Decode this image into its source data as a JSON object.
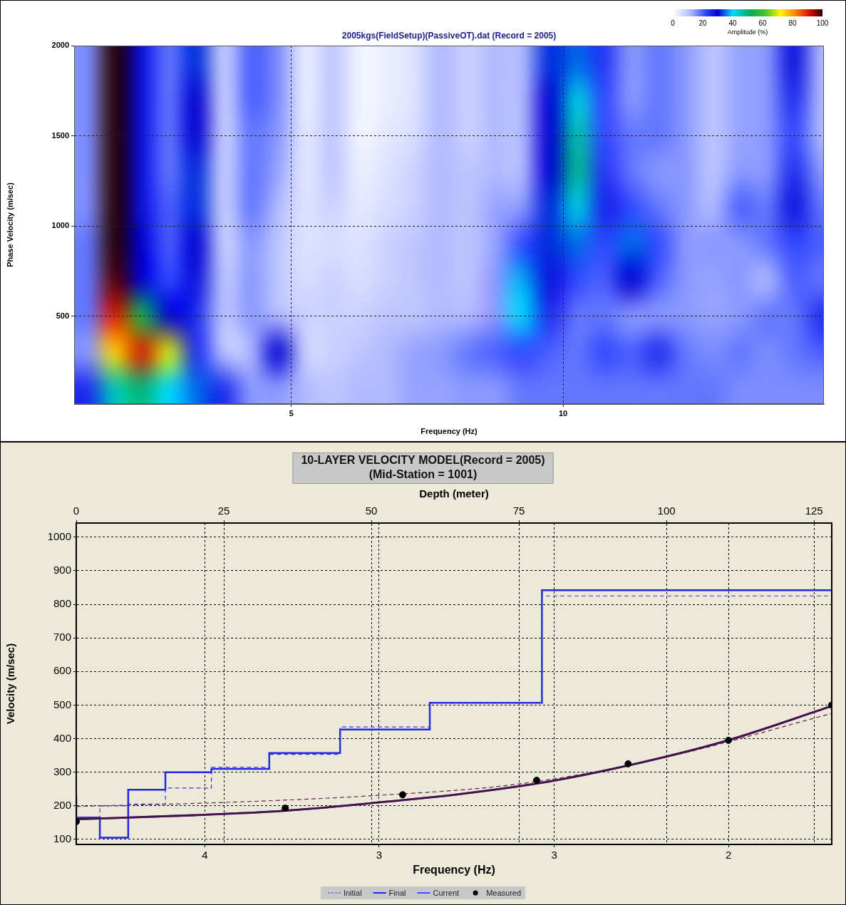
{
  "chart_data": [
    {
      "type": "heatmap",
      "title": "2005kgs(FieldSetup)(PassiveOT).dat (Record = 2005)",
      "x_label": "Frequency (Hz)",
      "y_label": "Phase Velocity (m/sec)",
      "xlim": [
        1,
        14.8
      ],
      "xticks": [
        5,
        10
      ],
      "ylim": [
        12,
        2000
      ],
      "yticks": [
        500,
        1000,
        1500,
        2000
      ],
      "grid": true,
      "x": [
        1.25,
        1.75,
        2.25,
        2.75,
        3.25,
        3.75,
        4.25,
        4.75,
        5.25,
        5.75,
        6.25,
        6.75,
        7.25,
        7.75,
        8.25,
        8.75,
        9.25,
        9.75,
        10.25,
        10.75,
        11.25,
        11.75,
        12.25,
        12.75,
        13.25,
        13.75,
        14.25,
        14.75
      ],
      "y": [
        100,
        300,
        500,
        700,
        900,
        1100,
        1300,
        1500,
        1700,
        1900
      ],
      "cells": [
        [
          25,
          45,
          50,
          40,
          35,
          25,
          15,
          15,
          12,
          10,
          12,
          12,
          14,
          14,
          15,
          15,
          18,
          18,
          18,
          18,
          18,
          18,
          18,
          18,
          16,
          16,
          16,
          16
        ],
        [
          15,
          75,
          90,
          70,
          25,
          10,
          12,
          30,
          8,
          8,
          10,
          12,
          14,
          15,
          18,
          20,
          22,
          20,
          18,
          22,
          20,
          25,
          18,
          16,
          18,
          16,
          18,
          20
        ],
        [
          18,
          90,
          55,
          30,
          25,
          10,
          15,
          12,
          8,
          8,
          8,
          10,
          10,
          12,
          12,
          15,
          40,
          25,
          18,
          18,
          15,
          15,
          15,
          14,
          15,
          18,
          18,
          25
        ],
        [
          18,
          98,
          30,
          22,
          28,
          10,
          15,
          10,
          6,
          8,
          6,
          8,
          10,
          12,
          10,
          15,
          38,
          28,
          22,
          20,
          30,
          20,
          15,
          14,
          15,
          12,
          20,
          18
        ],
        [
          18,
          100,
          30,
          20,
          30,
          8,
          15,
          10,
          5,
          6,
          5,
          8,
          10,
          12,
          10,
          14,
          22,
          32,
          35,
          22,
          35,
          22,
          15,
          15,
          15,
          18,
          22,
          20
        ],
        [
          16,
          100,
          28,
          20,
          32,
          8,
          18,
          12,
          5,
          8,
          4,
          6,
          8,
          12,
          10,
          14,
          15,
          32,
          42,
          26,
          22,
          18,
          15,
          12,
          20,
          18,
          28,
          18
        ],
        [
          16,
          100,
          28,
          18,
          32,
          8,
          18,
          14,
          4,
          10,
          3,
          5,
          8,
          12,
          10,
          12,
          12,
          30,
          48,
          24,
          18,
          15,
          15,
          10,
          15,
          15,
          25,
          15
        ],
        [
          16,
          100,
          28,
          18,
          30,
          8,
          18,
          15,
          4,
          10,
          2,
          4,
          6,
          12,
          8,
          12,
          12,
          30,
          46,
          22,
          18,
          18,
          15,
          10,
          14,
          15,
          22,
          12
        ],
        [
          16,
          100,
          28,
          18,
          30,
          8,
          20,
          16,
          3,
          10,
          2,
          3,
          5,
          12,
          8,
          12,
          12,
          30,
          42,
          22,
          15,
          18,
          15,
          10,
          14,
          15,
          25,
          12
        ],
        [
          16,
          100,
          28,
          18,
          32,
          8,
          20,
          16,
          3,
          10,
          2,
          3,
          5,
          12,
          8,
          12,
          12,
          32,
          35,
          24,
          15,
          18,
          15,
          10,
          14,
          15,
          28,
          12
        ]
      ],
      "colorbar": {
        "label": "Amplitude (%)",
        "range": [
          0,
          100
        ],
        "ticks": [
          0,
          20,
          40,
          60,
          80,
          100
        ]
      }
    },
    {
      "type": "line",
      "title": "10-LAYER VELOCITY MODEL(Record = 2005)",
      "subtitle": "(Mid-Station = 1001)",
      "x_label": "Depth (meter)",
      "x2_label": "Frequency (Hz)",
      "y_label": "Velocity (m/sec)",
      "xlim": [
        0,
        128
      ],
      "xticks": [
        0,
        25,
        50,
        75,
        100,
        125
      ],
      "x2ticks": [
        {
          "value": 21.8,
          "label": "4"
        },
        {
          "value": 51.3,
          "label": "3"
        },
        {
          "value": 81,
          "label": "3"
        },
        {
          "value": 110.5,
          "label": "2"
        }
      ],
      "ylim": [
        85,
        1042
      ],
      "yticks": [
        100,
        200,
        300,
        400,
        500,
        600,
        700,
        800,
        900,
        1000
      ],
      "grid": true,
      "legend": "bottom",
      "series": [
        {
          "name": "Initial",
          "type": "step",
          "color": "#3c3cd0",
          "line_style": "dashed",
          "x": [
            0,
            4,
            8.8,
            15.1,
            22.9,
            32.7,
            44.7,
            59.9,
            78.9,
            102.5
          ],
          "values": [
            165,
            165,
            200,
            205,
            253,
            315,
            353,
            435,
            507,
            825
          ]
        },
        {
          "name": "Final",
          "type": "step",
          "color": "#1e28e6",
          "line_style": "solid",
          "x": [
            0,
            4,
            8.8,
            15.1,
            22.9,
            32.7,
            44.7,
            59.9,
            78.9,
            102.5
          ],
          "values": [
            235,
            165,
            105,
            248,
            300,
            310,
            357,
            427,
            507,
            842
          ]
        },
        {
          "name": "Final",
          "type": "line",
          "color": "#4a1040",
          "line_style": "solid",
          "x": [
            0,
            20,
            35,
            50,
            65,
            80,
            93,
            110,
            128
          ],
          "values": [
            160,
            172,
            185,
            208,
            235,
            272,
            318,
            393,
            497
          ]
        },
        {
          "name": "Current",
          "type": "line",
          "color": "#3c50ff",
          "line_style": "solid",
          "x": [
            0,
            20,
            35,
            50,
            65,
            80,
            93,
            110,
            128
          ],
          "values": [
            160,
            172,
            185,
            208,
            235,
            272,
            318,
            393,
            497
          ]
        },
        {
          "name": "Measured",
          "type": "scatter",
          "color": "#000000",
          "marker": "circle",
          "x": [
            0,
            35.4,
            55.3,
            78,
            93.5,
            110.5,
            128
          ],
          "values": [
            153,
            193,
            233,
            276,
            325,
            395,
            500
          ]
        },
        {
          "name": "Initial",
          "type": "line",
          "color": "#6a2050",
          "line_style": "dashed",
          "x": [
            0,
            25,
            50,
            75,
            100,
            128
          ],
          "values": [
            198,
            210,
            230,
            265,
            345,
            475
          ]
        }
      ]
    }
  ]
}
